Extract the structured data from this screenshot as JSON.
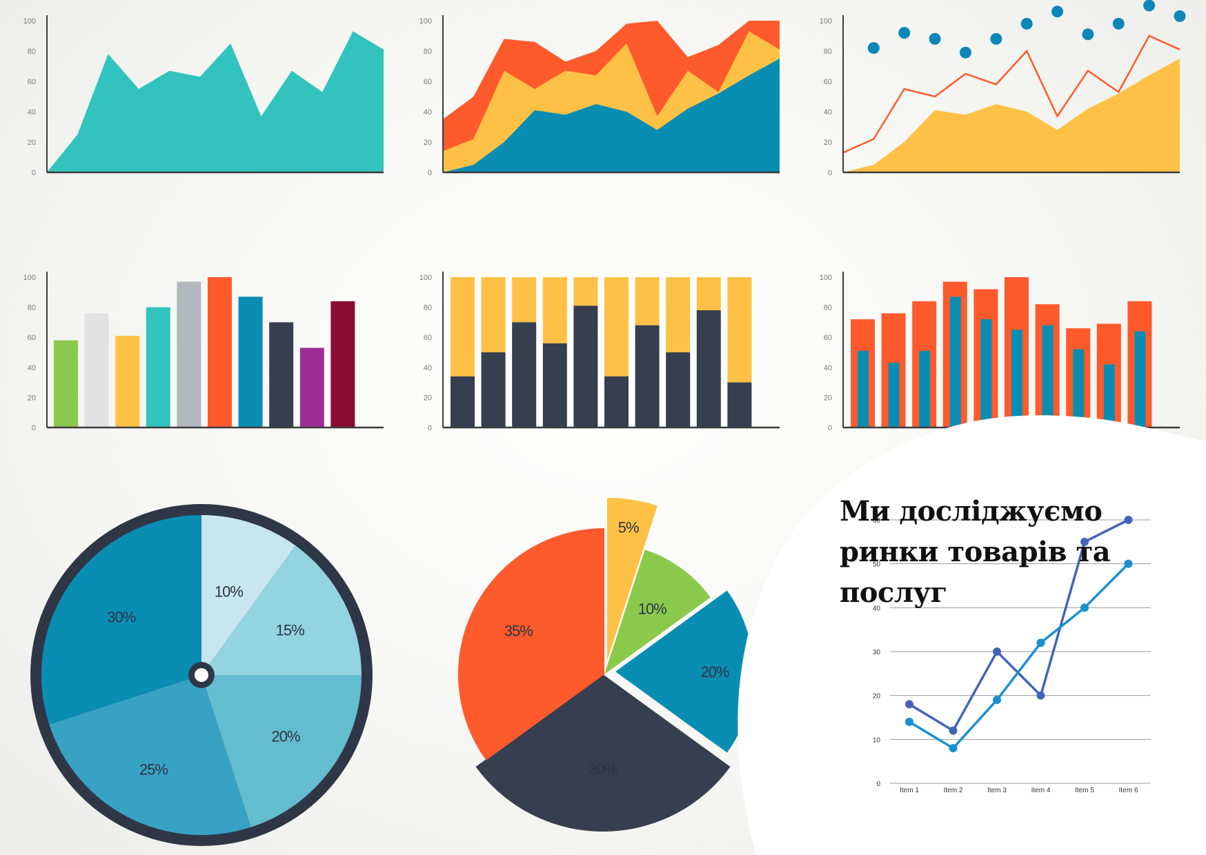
{
  "headline": "Ми досліджуємо ринки товарів та послуг",
  "colors": {
    "teal": "#33c3be",
    "orange": "#ff5a2c",
    "yellow": "#ffc145",
    "blue": "#0a8db3",
    "dark": "#363f4f",
    "green": "#8bc94d",
    "lightgray": "#e2e2e4",
    "gray": "#b3b7bf",
    "purple": "#9c2f93",
    "maroon": "#8a0c32",
    "dot": "#0d87b8",
    "line1": "#4264b8",
    "line2": "#1990d0",
    "pieRing": "#2f3747"
  },
  "chart_data": [
    {
      "type": "area",
      "y_ticks": [
        "0",
        "20",
        "40",
        "60",
        "80",
        "100"
      ],
      "ylim": [
        0,
        100
      ],
      "x": [
        0,
        1,
        2,
        3,
        4,
        5,
        6,
        7,
        8,
        9,
        10,
        11
      ],
      "series": [
        {
          "values": [
            0,
            25,
            78,
            55,
            67,
            63,
            85,
            37,
            67,
            53,
            93,
            81
          ]
        }
      ]
    },
    {
      "type": "area",
      "stacked": true,
      "y_ticks": [
        "0",
        "20",
        "40",
        "60",
        "80",
        "100"
      ],
      "ylim": [
        0,
        100
      ],
      "x": [
        0,
        1,
        2,
        3,
        4,
        5,
        6,
        7,
        8,
        9,
        10,
        11
      ],
      "series": [
        {
          "values": [
            0,
            5,
            20,
            41,
            38,
            45,
            40,
            28,
            42,
            52,
            64,
            75
          ]
        },
        {
          "values": [
            14,
            22,
            67,
            55,
            67,
            64,
            85,
            37,
            67,
            53,
            93,
            81
          ]
        },
        {
          "values": [
            35,
            50,
            88,
            86,
            73,
            80,
            98,
            100,
            76,
            84,
            100,
            100
          ]
        }
      ]
    },
    {
      "type": "area",
      "y_ticks": [
        "0",
        "20",
        "40",
        "60",
        "80",
        "100"
      ],
      "ylim": [
        0,
        100
      ],
      "x": [
        0,
        1,
        2,
        3,
        4,
        5,
        6,
        7,
        8,
        9,
        10,
        11
      ],
      "series": [
        {
          "kind": "area",
          "values": [
            0,
            5,
            20,
            41,
            38,
            45,
            40,
            28,
            42,
            52,
            64,
            75
          ]
        },
        {
          "kind": "line",
          "values": [
            13,
            22,
            55,
            50,
            65,
            58,
            80,
            37,
            67,
            53,
            90,
            81
          ]
        },
        {
          "kind": "scatter",
          "values": [
            null,
            82,
            92,
            88,
            79,
            88,
            98,
            106,
            91,
            98,
            110,
            103
          ]
        }
      ]
    },
    {
      "type": "bar",
      "y_ticks": [
        "0",
        "20",
        "40",
        "60",
        "80",
        "100"
      ],
      "ylim": [
        0,
        100
      ],
      "values": [
        58,
        76,
        61,
        80,
        97,
        100,
        87,
        70,
        53,
        84
      ]
    },
    {
      "type": "bar",
      "stacked": true,
      "y_ticks": [
        "0",
        "20",
        "40",
        "60",
        "80",
        "100"
      ],
      "ylim": [
        0,
        100
      ],
      "series": [
        {
          "values": [
            34,
            50,
            70,
            56,
            81,
            34,
            68,
            50,
            78,
            30
          ]
        },
        {
          "values": [
            66,
            50,
            30,
            44,
            19,
            66,
            32,
            50,
            22,
            70
          ]
        }
      ]
    },
    {
      "type": "bar",
      "overlay": true,
      "y_ticks": [
        "0",
        "20",
        "40",
        "60",
        "80",
        "100"
      ],
      "ylim": [
        0,
        100
      ],
      "series": [
        {
          "values": [
            72,
            76,
            84,
            97,
            92,
            100,
            82,
            66,
            69,
            84
          ]
        },
        {
          "values": [
            51,
            43,
            51,
            87,
            72,
            65,
            68,
            52,
            42,
            64
          ]
        }
      ]
    },
    {
      "type": "pie",
      "labels": [
        "10%",
        "15%",
        "20%",
        "25%",
        "30%"
      ],
      "values": [
        10,
        15,
        20,
        25,
        30
      ]
    },
    {
      "type": "pie",
      "labels": [
        "5%",
        "10%",
        "20%",
        "30%",
        "35%"
      ],
      "values": [
        5,
        10,
        20,
        30,
        35
      ]
    },
    {
      "type": "line",
      "categories": [
        "Item 1",
        "Item 2",
        "Item 3",
        "Item 4",
        "Item 5",
        "Item 6"
      ],
      "y_ticks": [
        "0",
        "10",
        "20",
        "30",
        "40",
        "50",
        "60"
      ],
      "ylim": [
        0,
        60
      ],
      "series": [
        {
          "values": [
            18,
            12,
            30,
            20,
            55,
            60
          ]
        },
        {
          "values": [
            14,
            8,
            19,
            32,
            40,
            50
          ]
        }
      ]
    }
  ]
}
